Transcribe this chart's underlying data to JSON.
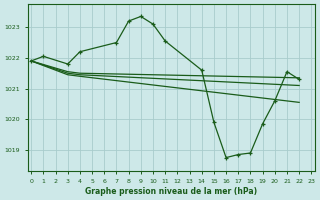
{
  "background_color": "#cde8e8",
  "grid_color": "#a8cccc",
  "line_color": "#1a5c1a",
  "title": "Graphe pression niveau de la mer (hPa)",
  "xlim": [
    -0.3,
    23.3
  ],
  "ylim": [
    1018.3,
    1023.75
  ],
  "yticks": [
    1019,
    1020,
    1021,
    1022,
    1023
  ],
  "xticks": [
    0,
    1,
    2,
    3,
    4,
    5,
    6,
    7,
    8,
    9,
    10,
    11,
    12,
    13,
    14,
    15,
    16,
    17,
    18,
    19,
    20,
    21,
    22,
    23
  ],
  "line1_x": [
    0,
    1,
    3,
    4,
    7,
    8,
    9,
    10,
    11,
    14,
    15,
    16,
    17,
    18,
    19,
    20,
    21,
    22
  ],
  "line1_y": [
    1021.9,
    1022.05,
    1021.8,
    1022.2,
    1022.5,
    1023.2,
    1023.35,
    1023.1,
    1022.55,
    1021.6,
    1019.9,
    1018.75,
    1018.85,
    1018.9,
    1019.85,
    1020.6,
    1021.55,
    1021.3
  ],
  "line2_x": [
    0,
    3,
    4,
    22
  ],
  "line2_y": [
    1021.9,
    1021.55,
    1021.5,
    1021.35
  ],
  "line3_x": [
    0,
    3,
    4,
    22
  ],
  "line3_y": [
    1021.9,
    1021.5,
    1021.45,
    1021.1
  ],
  "line4_x": [
    0,
    3,
    4,
    22
  ],
  "line4_y": [
    1021.9,
    1021.45,
    1021.4,
    1020.55
  ]
}
